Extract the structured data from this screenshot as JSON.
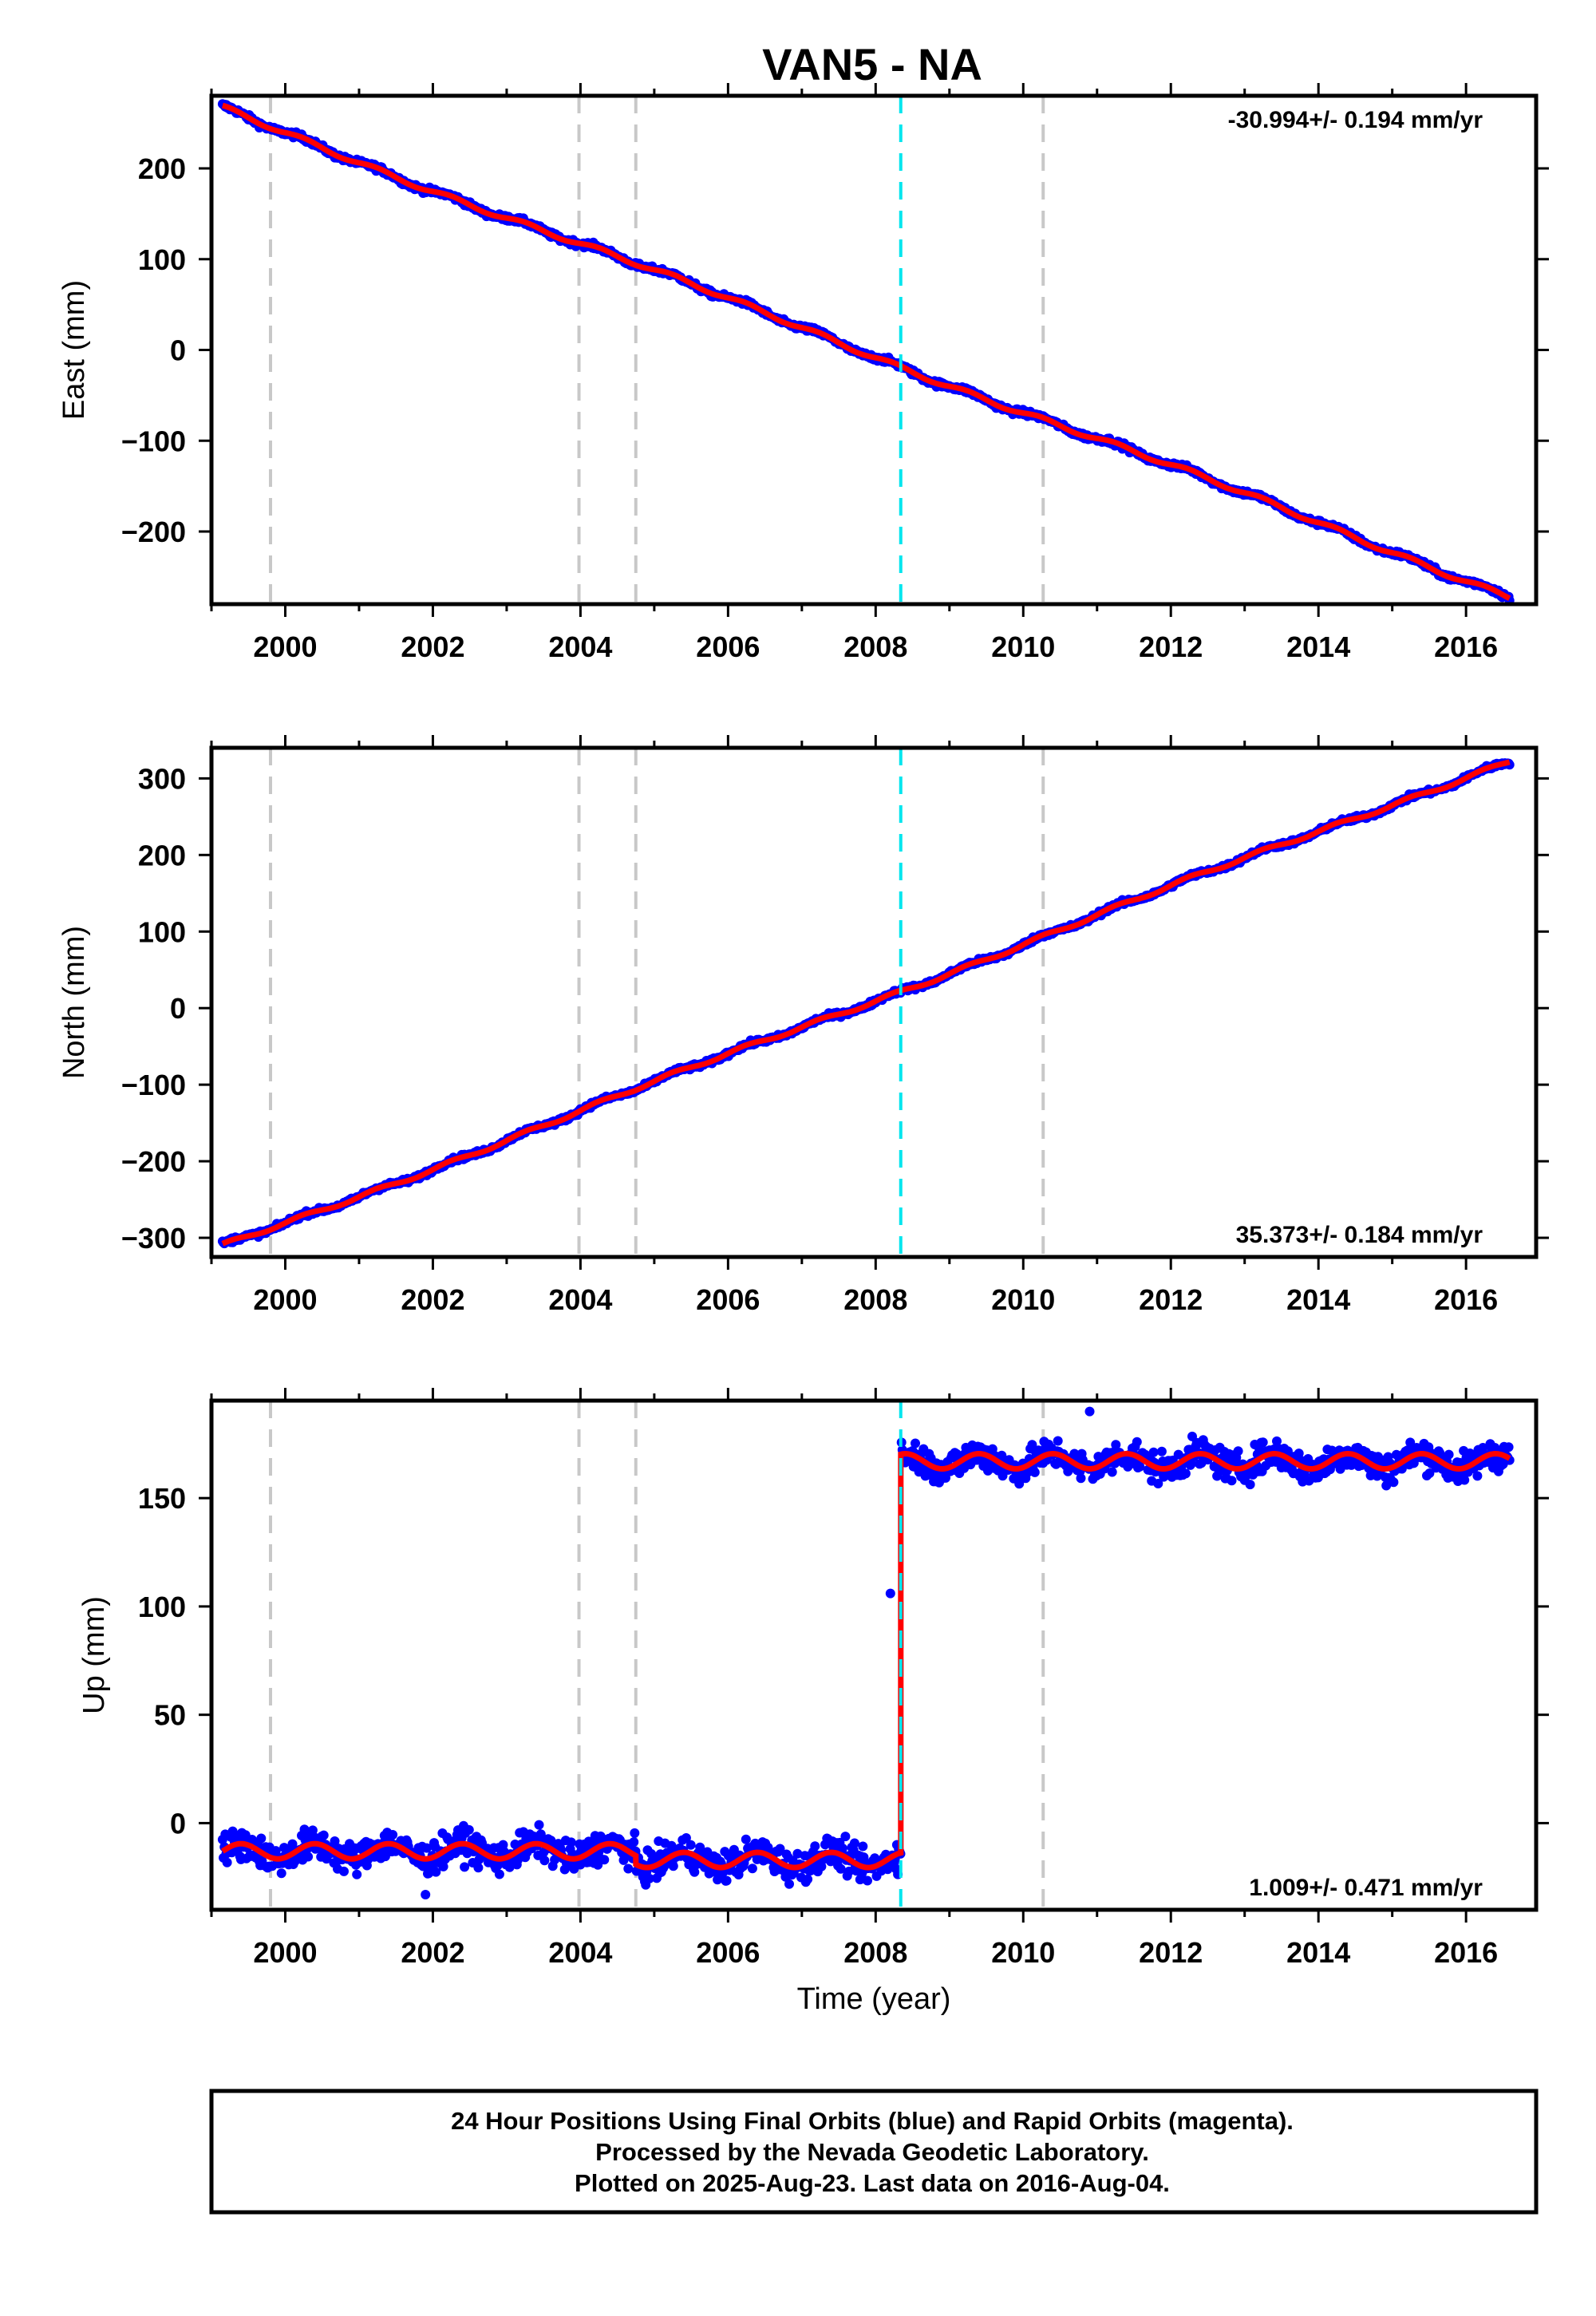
{
  "title": "VAN5 - NA",
  "colors": {
    "final_points": "#0000ff",
    "fit_line": "#ff0000",
    "equipment_change": "#c8c8c8",
    "earthquake": "#00e5ee",
    "frame": "#000000"
  },
  "chart_data": [
    {
      "type": "scatter",
      "panel": "east",
      "ylabel": "East (mm)",
      "xlabel": "",
      "xlim": [
        1999.0,
        2016.95
      ],
      "ylim": [
        -280,
        280
      ],
      "xticks": [
        2000,
        2002,
        2004,
        2006,
        2008,
        2010,
        2012,
        2014,
        2016
      ],
      "yticks": [
        -200,
        -100,
        0,
        100,
        200
      ],
      "rate_label": "-30.994+/- 0.194 mm/yr",
      "rate_label_position": "top-right",
      "start_year": 1999.15,
      "end_year": 2016.59,
      "start_value": 265,
      "end_value": -270,
      "rate_mm_per_yr": -30.994,
      "equipment_change_lines": [
        1999.8,
        2003.98,
        2004.75,
        2010.27
      ],
      "earthquake_lines": [
        2008.34
      ]
    },
    {
      "type": "scatter",
      "panel": "north",
      "ylabel": "North (mm)",
      "xlabel": "",
      "xlim": [
        1999.0,
        2016.95
      ],
      "ylim": [
        -325,
        340
      ],
      "xticks": [
        2000,
        2002,
        2004,
        2006,
        2008,
        2010,
        2012,
        2014,
        2016
      ],
      "yticks": [
        -300,
        -200,
        -100,
        0,
        100,
        200,
        300
      ],
      "rate_label": "35.373+/- 0.184 mm/yr",
      "rate_label_position": "bottom-right",
      "start_year": 1999.15,
      "end_year": 2016.59,
      "start_value": -312,
      "end_value": 325,
      "rate_mm_per_yr": 35.373,
      "equipment_change_lines": [
        1999.8,
        2003.98,
        2004.75,
        2010.27
      ],
      "earthquake_lines": [
        2008.34
      ]
    },
    {
      "type": "scatter",
      "panel": "up",
      "ylabel": "Up (mm)",
      "xlabel": "Time (year)",
      "xlim": [
        1999.0,
        2016.95
      ],
      "ylim": [
        -40,
        195
      ],
      "xticks": [
        2000,
        2002,
        2004,
        2006,
        2008,
        2010,
        2012,
        2014,
        2016
      ],
      "yticks": [
        0,
        50,
        100,
        150
      ],
      "rate_label": "1.009+/- 0.471 mm/yr",
      "rate_label_position": "bottom-right",
      "start_year": 1999.15,
      "end_year": 2016.59,
      "rate_mm_per_yr": 1.009,
      "segments": [
        {
          "from": 1999.15,
          "to": 2004.75,
          "level": -13
        },
        {
          "from": 2004.75,
          "to": 2008.34,
          "level": -17
        },
        {
          "from": 2008.34,
          "to": 2016.59,
          "level": 167
        }
      ],
      "outliers": [
        {
          "x": 2008.2,
          "y": 106
        },
        {
          "x": 2010.9,
          "y": 190
        },
        {
          "x": 2001.9,
          "y": -33
        }
      ],
      "equipment_change_lines": [
        1999.8,
        2003.98,
        2004.75,
        2010.27
      ],
      "earthquake_lines": [
        2008.34
      ]
    }
  ],
  "footer": {
    "line1": "24 Hour Positions Using Final Orbits (blue) and Rapid Orbits (magenta).",
    "line2": "Processed by the Nevada Geodetic Laboratory.",
    "line3": "Plotted on 2025-Aug-23. Last data on 2016-Aug-04."
  }
}
